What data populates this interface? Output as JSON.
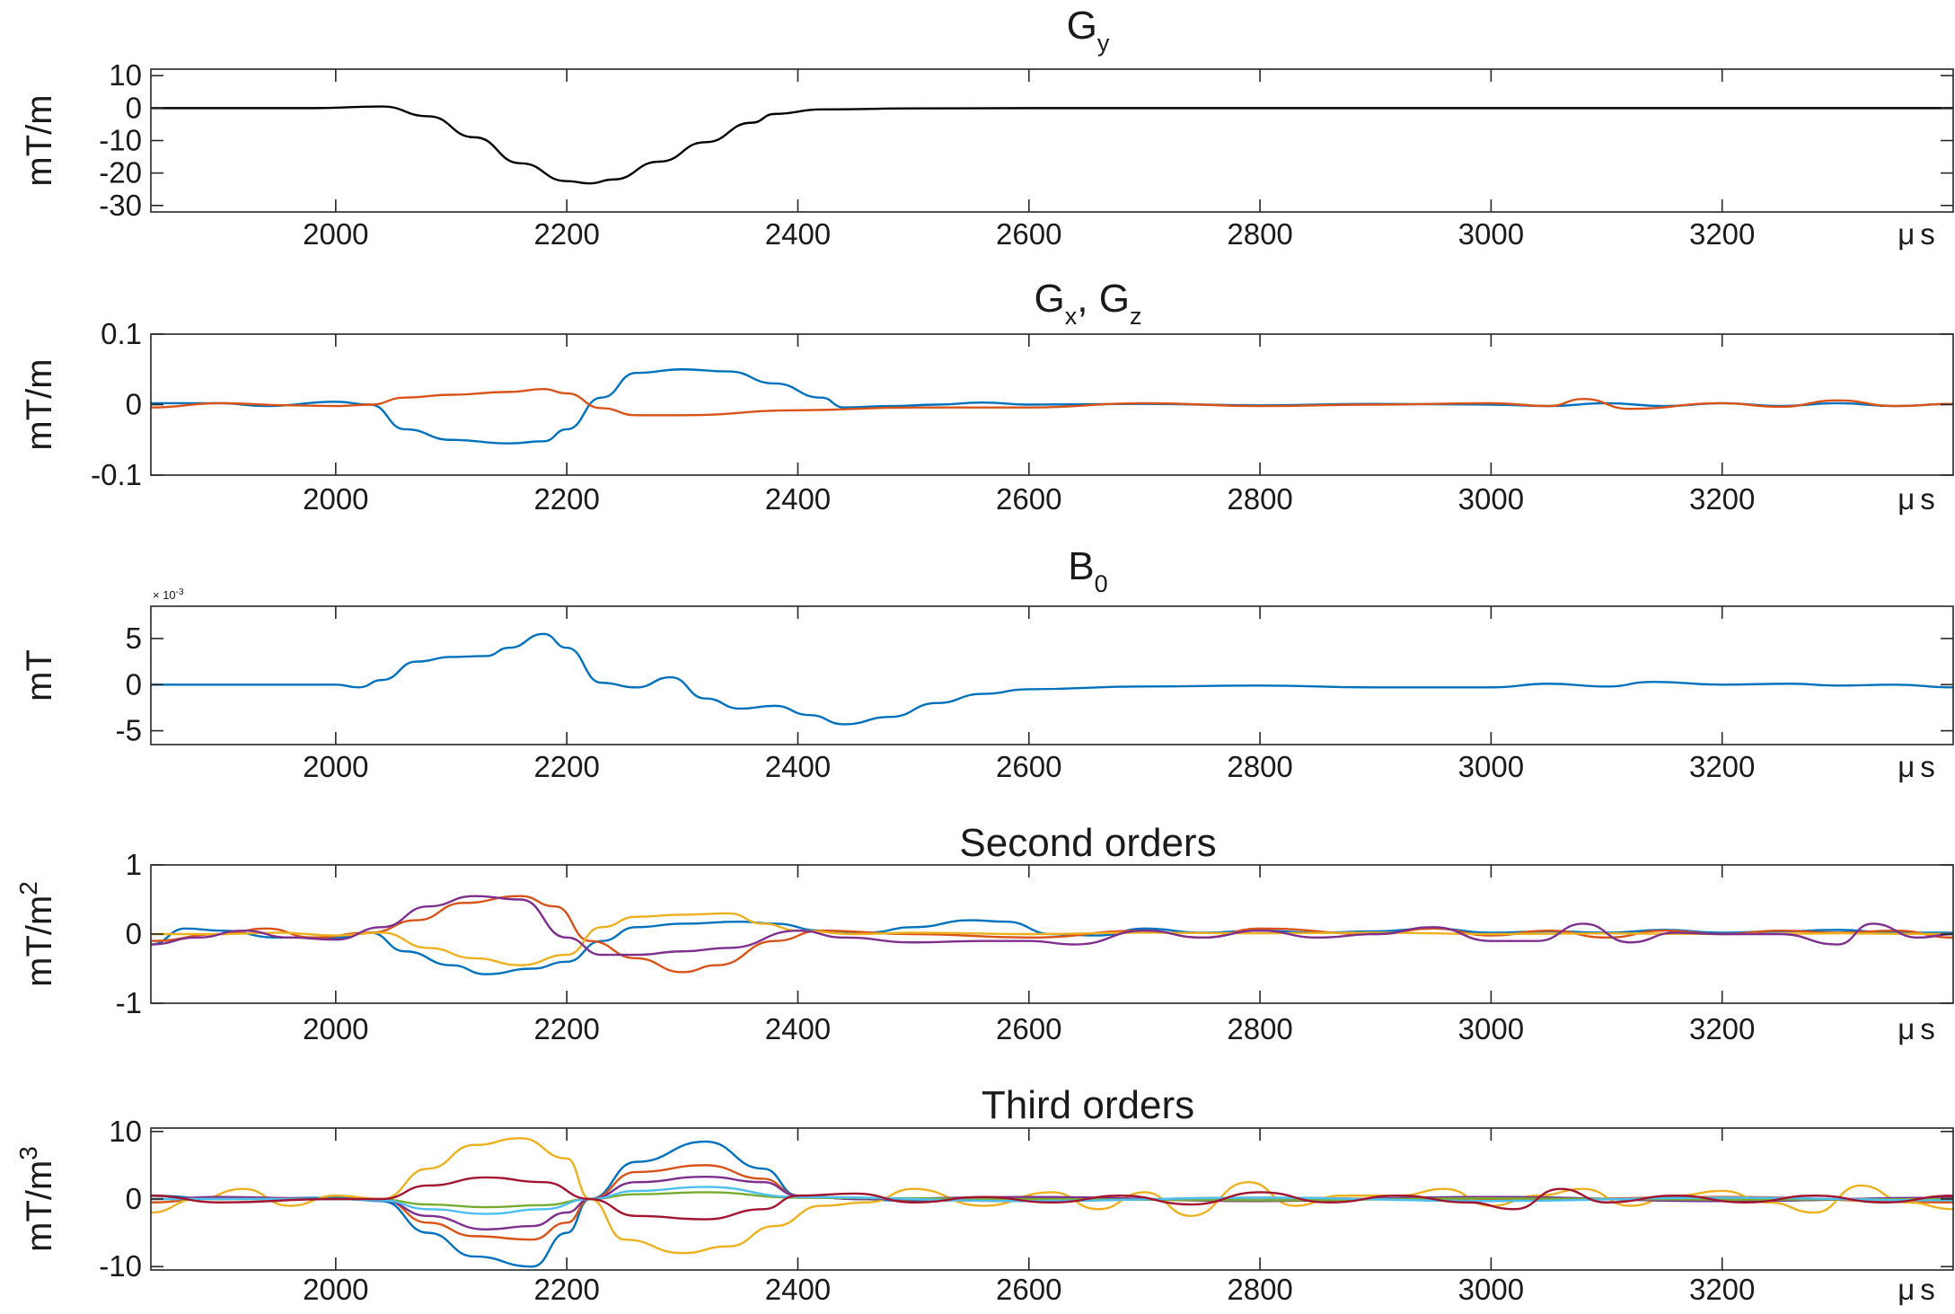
{
  "chart_data": [
    {
      "type": "line",
      "title": "G",
      "title_sub": "y",
      "ylabel": "mT/m",
      "xunit": "μs",
      "xlim": [
        1840,
        3400
      ],
      "ylim": [
        -32,
        12
      ],
      "xticks": [
        2000,
        2200,
        2400,
        2600,
        2800,
        3000,
        3200
      ],
      "xtick_labels": [
        "2000",
        "2200",
        "2400",
        "2600",
        "2800",
        "3000",
        "3200"
      ],
      "yticks": [
        10,
        0,
        -10,
        -20,
        -30
      ],
      "ytick_labels": [
        "10",
        "0",
        "-10",
        "-20",
        "-30"
      ],
      "series": [
        {
          "color": "#000000",
          "x": [
            1840,
            1980,
            2040,
            2080,
            2120,
            2160,
            2200,
            2220,
            2240,
            2280,
            2320,
            2360,
            2380,
            2420,
            2500,
            2600,
            3400
          ],
          "y": [
            0,
            0,
            0.5,
            -2.5,
            -9,
            -17,
            -22.5,
            -23.2,
            -22,
            -16.5,
            -10.5,
            -4.5,
            -1.8,
            -0.4,
            -0.1,
            0,
            0
          ]
        }
      ]
    },
    {
      "type": "line",
      "title": "G",
      "title_sub": "x",
      "title_mid": ", G",
      "title_sub2": "z",
      "ylabel": "mT/m",
      "xunit": "μs",
      "xlim": [
        1840,
        3400
      ],
      "ylim": [
        -0.1,
        0.1
      ],
      "xticks": [
        2000,
        2200,
        2400,
        2600,
        2800,
        3000,
        3200
      ],
      "xtick_labels": [
        "2000",
        "2200",
        "2400",
        "2600",
        "2800",
        "3000",
        "3200"
      ],
      "yticks": [
        0.1,
        0,
        -0.1
      ],
      "ytick_labels": [
        "0.1",
        "0",
        "-0.1"
      ],
      "series": [
        {
          "color": "#0072BD",
          "x": [
            1840,
            1900,
            1940,
            2000,
            2030,
            2060,
            2100,
            2150,
            2180,
            2200,
            2230,
            2260,
            2300,
            2340,
            2380,
            2420,
            2440,
            2480,
            2520,
            2560,
            2600,
            2700,
            2800,
            2900,
            3000,
            3050,
            3100,
            3150,
            3200,
            3250,
            3300,
            3350,
            3400
          ],
          "y": [
            0.002,
            0.002,
            -0.002,
            0.004,
            0,
            -0.035,
            -0.05,
            -0.055,
            -0.052,
            -0.035,
            0.01,
            0.045,
            0.05,
            0.047,
            0.03,
            0.01,
            -0.004,
            -0.002,
            0,
            0.003,
            0,
            0.001,
            -0.001,
            0.001,
            0,
            -0.002,
            0.002,
            -0.002,
            0.002,
            -0.002,
            0.002,
            -0.002,
            0.001
          ]
        },
        {
          "color": "#D95319",
          "x": [
            1840,
            1900,
            1960,
            2000,
            2030,
            2060,
            2100,
            2150,
            2180,
            2200,
            2230,
            2260,
            2300,
            2400,
            2500,
            2600,
            2700,
            2800,
            2900,
            3000,
            3050,
            3080,
            3120,
            3200,
            3250,
            3300,
            3350,
            3400
          ],
          "y": [
            -0.004,
            0.002,
            -0.001,
            -0.002,
            0,
            0.01,
            0.014,
            0.018,
            0.022,
            0.016,
            -0.005,
            -0.015,
            -0.015,
            -0.008,
            -0.004,
            -0.004,
            0.002,
            -0.002,
            0,
            0.002,
            -0.002,
            0.008,
            -0.006,
            0.002,
            -0.003,
            0.006,
            -0.002,
            0.001
          ]
        }
      ]
    },
    {
      "type": "line",
      "title": "B",
      "title_sub": "0",
      "ylabel": "mT",
      "xunit": "μs",
      "exponent": "× 10",
      "exponent_power": "-3",
      "xlim": [
        1840,
        3400
      ],
      "ylim": [
        -6.5,
        8.5
      ],
      "xticks": [
        2000,
        2200,
        2400,
        2600,
        2800,
        3000,
        3200
      ],
      "xtick_labels": [
        "2000",
        "2200",
        "2400",
        "2600",
        "2800",
        "3000",
        "3200"
      ],
      "yticks": [
        5,
        0,
        -5
      ],
      "ytick_labels": [
        "5",
        "0",
        "-5"
      ],
      "series": [
        {
          "color": "#0072BD",
          "x": [
            1840,
            1900,
            1960,
            2000,
            2020,
            2040,
            2070,
            2100,
            2130,
            2150,
            2180,
            2200,
            2230,
            2260,
            2290,
            2320,
            2350,
            2380,
            2410,
            2440,
            2480,
            2520,
            2560,
            2600,
            2700,
            2800,
            2900,
            3000,
            3050,
            3100,
            3140,
            3200,
            3260,
            3300,
            3350,
            3400
          ],
          "y": [
            0,
            0,
            0,
            0,
            -0.3,
            0.5,
            2.5,
            3.0,
            3.1,
            4.0,
            5.5,
            4.0,
            0.2,
            -0.3,
            0.8,
            -1.5,
            -2.6,
            -2.3,
            -3.3,
            -4.3,
            -3.5,
            -2.0,
            -1.0,
            -0.5,
            -0.2,
            -0.1,
            -0.3,
            -0.3,
            0.1,
            -0.2,
            0.3,
            0,
            0.1,
            -0.1,
            0,
            -0.3
          ]
        }
      ]
    },
    {
      "type": "line",
      "title": "Second orders",
      "ylabel": "mT/m",
      "ylabel_sup": "2",
      "xunit": "μs",
      "xlim": [
        1840,
        3400
      ],
      "ylim": [
        -1,
        1
      ],
      "xticks": [
        2000,
        2200,
        2400,
        2600,
        2800,
        3000,
        3200
      ],
      "xtick_labels": [
        "2000",
        "2200",
        "2400",
        "2600",
        "2800",
        "3000",
        "3200"
      ],
      "yticks": [
        1,
        0,
        -1
      ],
      "ytick_labels": [
        "1",
        "0",
        "-1"
      ],
      "series": [
        {
          "color": "#0072BD",
          "x": [
            1840,
            1870,
            1900,
            1950,
            2000,
            2030,
            2060,
            2100,
            2130,
            2170,
            2200,
            2230,
            2260,
            2300,
            2350,
            2380,
            2420,
            2460,
            2500,
            2550,
            2580,
            2620,
            2660,
            2700,
            2750,
            2800,
            2850,
            2900,
            2950,
            3000,
            3050,
            3100,
            3150,
            3200,
            3250,
            3300,
            3350,
            3400
          ],
          "y": [
            -0.15,
            0.08,
            0.05,
            -0.05,
            -0.05,
            0.02,
            -0.25,
            -0.45,
            -0.58,
            -0.5,
            -0.4,
            -0.1,
            0.1,
            0.15,
            0.18,
            0.15,
            0.05,
            0.02,
            0.1,
            0.2,
            0.18,
            0,
            -0.02,
            0.08,
            0.02,
            0.05,
            0.02,
            0.04,
            0.08,
            0.02,
            0.04,
            0.02,
            0.06,
            0.02,
            0.04,
            0.06,
            0.02,
            0.02
          ]
        },
        {
          "color": "#D95319",
          "x": [
            1840,
            1900,
            1940,
            1980,
            2030,
            2070,
            2110,
            2160,
            2190,
            2220,
            2260,
            2300,
            2330,
            2380,
            2420,
            2500,
            2600,
            2700,
            2750,
            2800,
            2900,
            2950,
            3000,
            3050,
            3100,
            3150,
            3200,
            3250,
            3300,
            3350,
            3400
          ],
          "y": [
            -0.1,
            0,
            0.08,
            -0.05,
            0.02,
            0.2,
            0.45,
            0.55,
            0.4,
            -0.1,
            -0.35,
            -0.55,
            -0.45,
            -0.1,
            0.05,
            0,
            -0.05,
            0.05,
            -0.05,
            0.08,
            0,
            0.08,
            -0.02,
            0.05,
            -0.05,
            0.05,
            0,
            0.05,
            0.02,
            0.05,
            -0.05
          ]
        },
        {
          "color": "#EDB120",
          "x": [
            1840,
            1900,
            1950,
            2000,
            2040,
            2080,
            2120,
            2160,
            2200,
            2230,
            2260,
            2300,
            2340,
            2370,
            2400,
            2450,
            2500,
            2600,
            2700,
            2800,
            2900,
            3000,
            3100,
            3200,
            3300,
            3400
          ],
          "y": [
            0,
            0,
            0.02,
            -0.02,
            0.02,
            -0.2,
            -0.35,
            -0.45,
            -0.3,
            0.1,
            0.25,
            0.28,
            0.3,
            0.15,
            0.05,
            0,
            0.02,
            0,
            0.02,
            0.01,
            0.02,
            0,
            0.01,
            0,
            0.01,
            0
          ]
        },
        {
          "color": "#7E2F8E",
          "x": [
            1840,
            1880,
            1920,
            1960,
            2000,
            2040,
            2080,
            2120,
            2160,
            2200,
            2230,
            2260,
            2300,
            2340,
            2400,
            2440,
            2500,
            2560,
            2600,
            2640,
            2700,
            2750,
            2800,
            2850,
            2900,
            2950,
            3000,
            3040,
            3080,
            3120,
            3160,
            3200,
            3250,
            3300,
            3330,
            3370,
            3400
          ],
          "y": [
            -0.15,
            -0.05,
            0.05,
            -0.05,
            -0.08,
            0.1,
            0.4,
            0.55,
            0.5,
            -0.05,
            -0.3,
            -0.3,
            -0.25,
            -0.2,
            0.05,
            -0.05,
            -0.12,
            -0.1,
            -0.1,
            -0.15,
            0.05,
            -0.05,
            0.05,
            -0.05,
            0,
            0.1,
            -0.1,
            -0.1,
            0.15,
            -0.12,
            0.02,
            0,
            0,
            -0.15,
            0.15,
            -0.05,
            0
          ]
        }
      ]
    },
    {
      "type": "line",
      "title": "Third orders",
      "ylabel": "mT/m",
      "ylabel_sup": "3",
      "xunit": "μs",
      "xlim": [
        1840,
        3400
      ],
      "ylim": [
        -10.5,
        10.5
      ],
      "xticks": [
        2000,
        2200,
        2400,
        2600,
        2800,
        3000,
        3200
      ],
      "xtick_labels": [
        "2000",
        "2200",
        "2400",
        "2600",
        "2800",
        "3000",
        "3200"
      ],
      "yticks": [
        10,
        0,
        -10
      ],
      "ytick_labels": [
        "10",
        "0",
        "-10"
      ],
      "series": [
        {
          "color": "#0072BD",
          "x": [
            1840,
            1900,
            2000,
            2040,
            2080,
            2120,
            2170,
            2200,
            2220,
            2260,
            2320,
            2370,
            2400,
            2450,
            2500,
            2600,
            2800,
            3000,
            3200,
            3400
          ],
          "y": [
            0.5,
            0,
            0.2,
            -0.3,
            -5,
            -8.5,
            -10,
            -5,
            0,
            5.5,
            8.5,
            4.5,
            0.5,
            0,
            -0.3,
            0.2,
            -0.2,
            0.3,
            -0.3,
            0.2
          ]
        },
        {
          "color": "#D95319",
          "x": [
            1840,
            1900,
            2000,
            2040,
            2080,
            2120,
            2170,
            2200,
            2220,
            2260,
            2320,
            2370,
            2400,
            2450,
            2600,
            2800,
            3000,
            3200,
            3400
          ],
          "y": [
            -0.5,
            0.3,
            0,
            0,
            -3.5,
            -5.5,
            -6,
            -3.5,
            0,
            4,
            5,
            3,
            0.5,
            0,
            -0.3,
            0.2,
            -0.2,
            0.3,
            -0.5
          ]
        },
        {
          "color": "#EDB120",
          "x": [
            1840,
            1880,
            1920,
            1960,
            2000,
            2040,
            2080,
            2120,
            2160,
            2200,
            2220,
            2250,
            2300,
            2340,
            2380,
            2420,
            2460,
            2500,
            2560,
            2620,
            2660,
            2700,
            2740,
            2790,
            2830,
            2870,
            2920,
            2960,
            3000,
            3040,
            3080,
            3120,
            3160,
            3200,
            3240,
            3280,
            3320,
            3360,
            3400
          ],
          "y": [
            -2,
            0,
            1.5,
            -1,
            0.5,
            0,
            4.5,
            8,
            9,
            6,
            0,
            -6,
            -8,
            -7,
            -4,
            -1,
            -0.5,
            1.5,
            -1,
            1,
            -1.5,
            1,
            -2.5,
            2.5,
            -1,
            0.5,
            0.5,
            1.5,
            -1,
            0.5,
            1.5,
            -1,
            0.5,
            1.2,
            -0.5,
            -2,
            2,
            -0.5,
            -1.5
          ]
        },
        {
          "color": "#7E2F8E",
          "x": [
            1840,
            1900,
            2000,
            2040,
            2080,
            2130,
            2170,
            2200,
            2220,
            2260,
            2320,
            2370,
            2400,
            2450,
            2600,
            2800,
            3000,
            3200,
            3400
          ],
          "y": [
            0,
            0.3,
            0,
            -0.2,
            -2.5,
            -4.5,
            -4,
            -2,
            0,
            2.5,
            3.3,
            2.5,
            0.5,
            0,
            0.3,
            -0.3,
            0.3,
            -0.3,
            0.2
          ]
        },
        {
          "color": "#77AC30",
          "x": [
            1840,
            2000,
            2040,
            2080,
            2130,
            2180,
            2220,
            2260,
            2320,
            2400,
            2600,
            2800,
            3000,
            3200,
            3400
          ],
          "y": [
            0,
            0,
            -0.1,
            -0.8,
            -1.2,
            -0.9,
            0,
            0.7,
            1.0,
            0.2,
            0,
            -0.2,
            0.1,
            -0.1,
            0
          ]
        },
        {
          "color": "#4DBEEE",
          "x": [
            1840,
            2000,
            2040,
            2080,
            2130,
            2180,
            2220,
            2260,
            2320,
            2400,
            2600,
            2800,
            3000,
            3200,
            3400
          ],
          "y": [
            0,
            0,
            -0.2,
            -1.5,
            -2.2,
            -1.5,
            0,
            1.2,
            1.8,
            0.3,
            -0.3,
            0.2,
            -0.3,
            0.2,
            -0.2
          ]
        },
        {
          "color": "#A2142F",
          "x": [
            1840,
            1900,
            2000,
            2040,
            2080,
            2130,
            2180,
            2220,
            2260,
            2320,
            2370,
            2400,
            2450,
            2500,
            2560,
            2620,
            2680,
            2740,
            2800,
            2860,
            2920,
            2980,
            3020,
            3060,
            3100,
            3160,
            3220,
            3280,
            3340,
            3400
          ],
          "y": [
            0.5,
            -0.5,
            0,
            0,
            2,
            3.2,
            2.5,
            0,
            -2.5,
            -3,
            -1.5,
            0.5,
            0.8,
            -0.5,
            0.3,
            -0.5,
            0.5,
            -0.8,
            1,
            -0.5,
            0.5,
            -0.5,
            -1.5,
            1.5,
            -0.5,
            0.5,
            -0.5,
            0.5,
            -0.5,
            0.5
          ]
        }
      ]
    }
  ]
}
